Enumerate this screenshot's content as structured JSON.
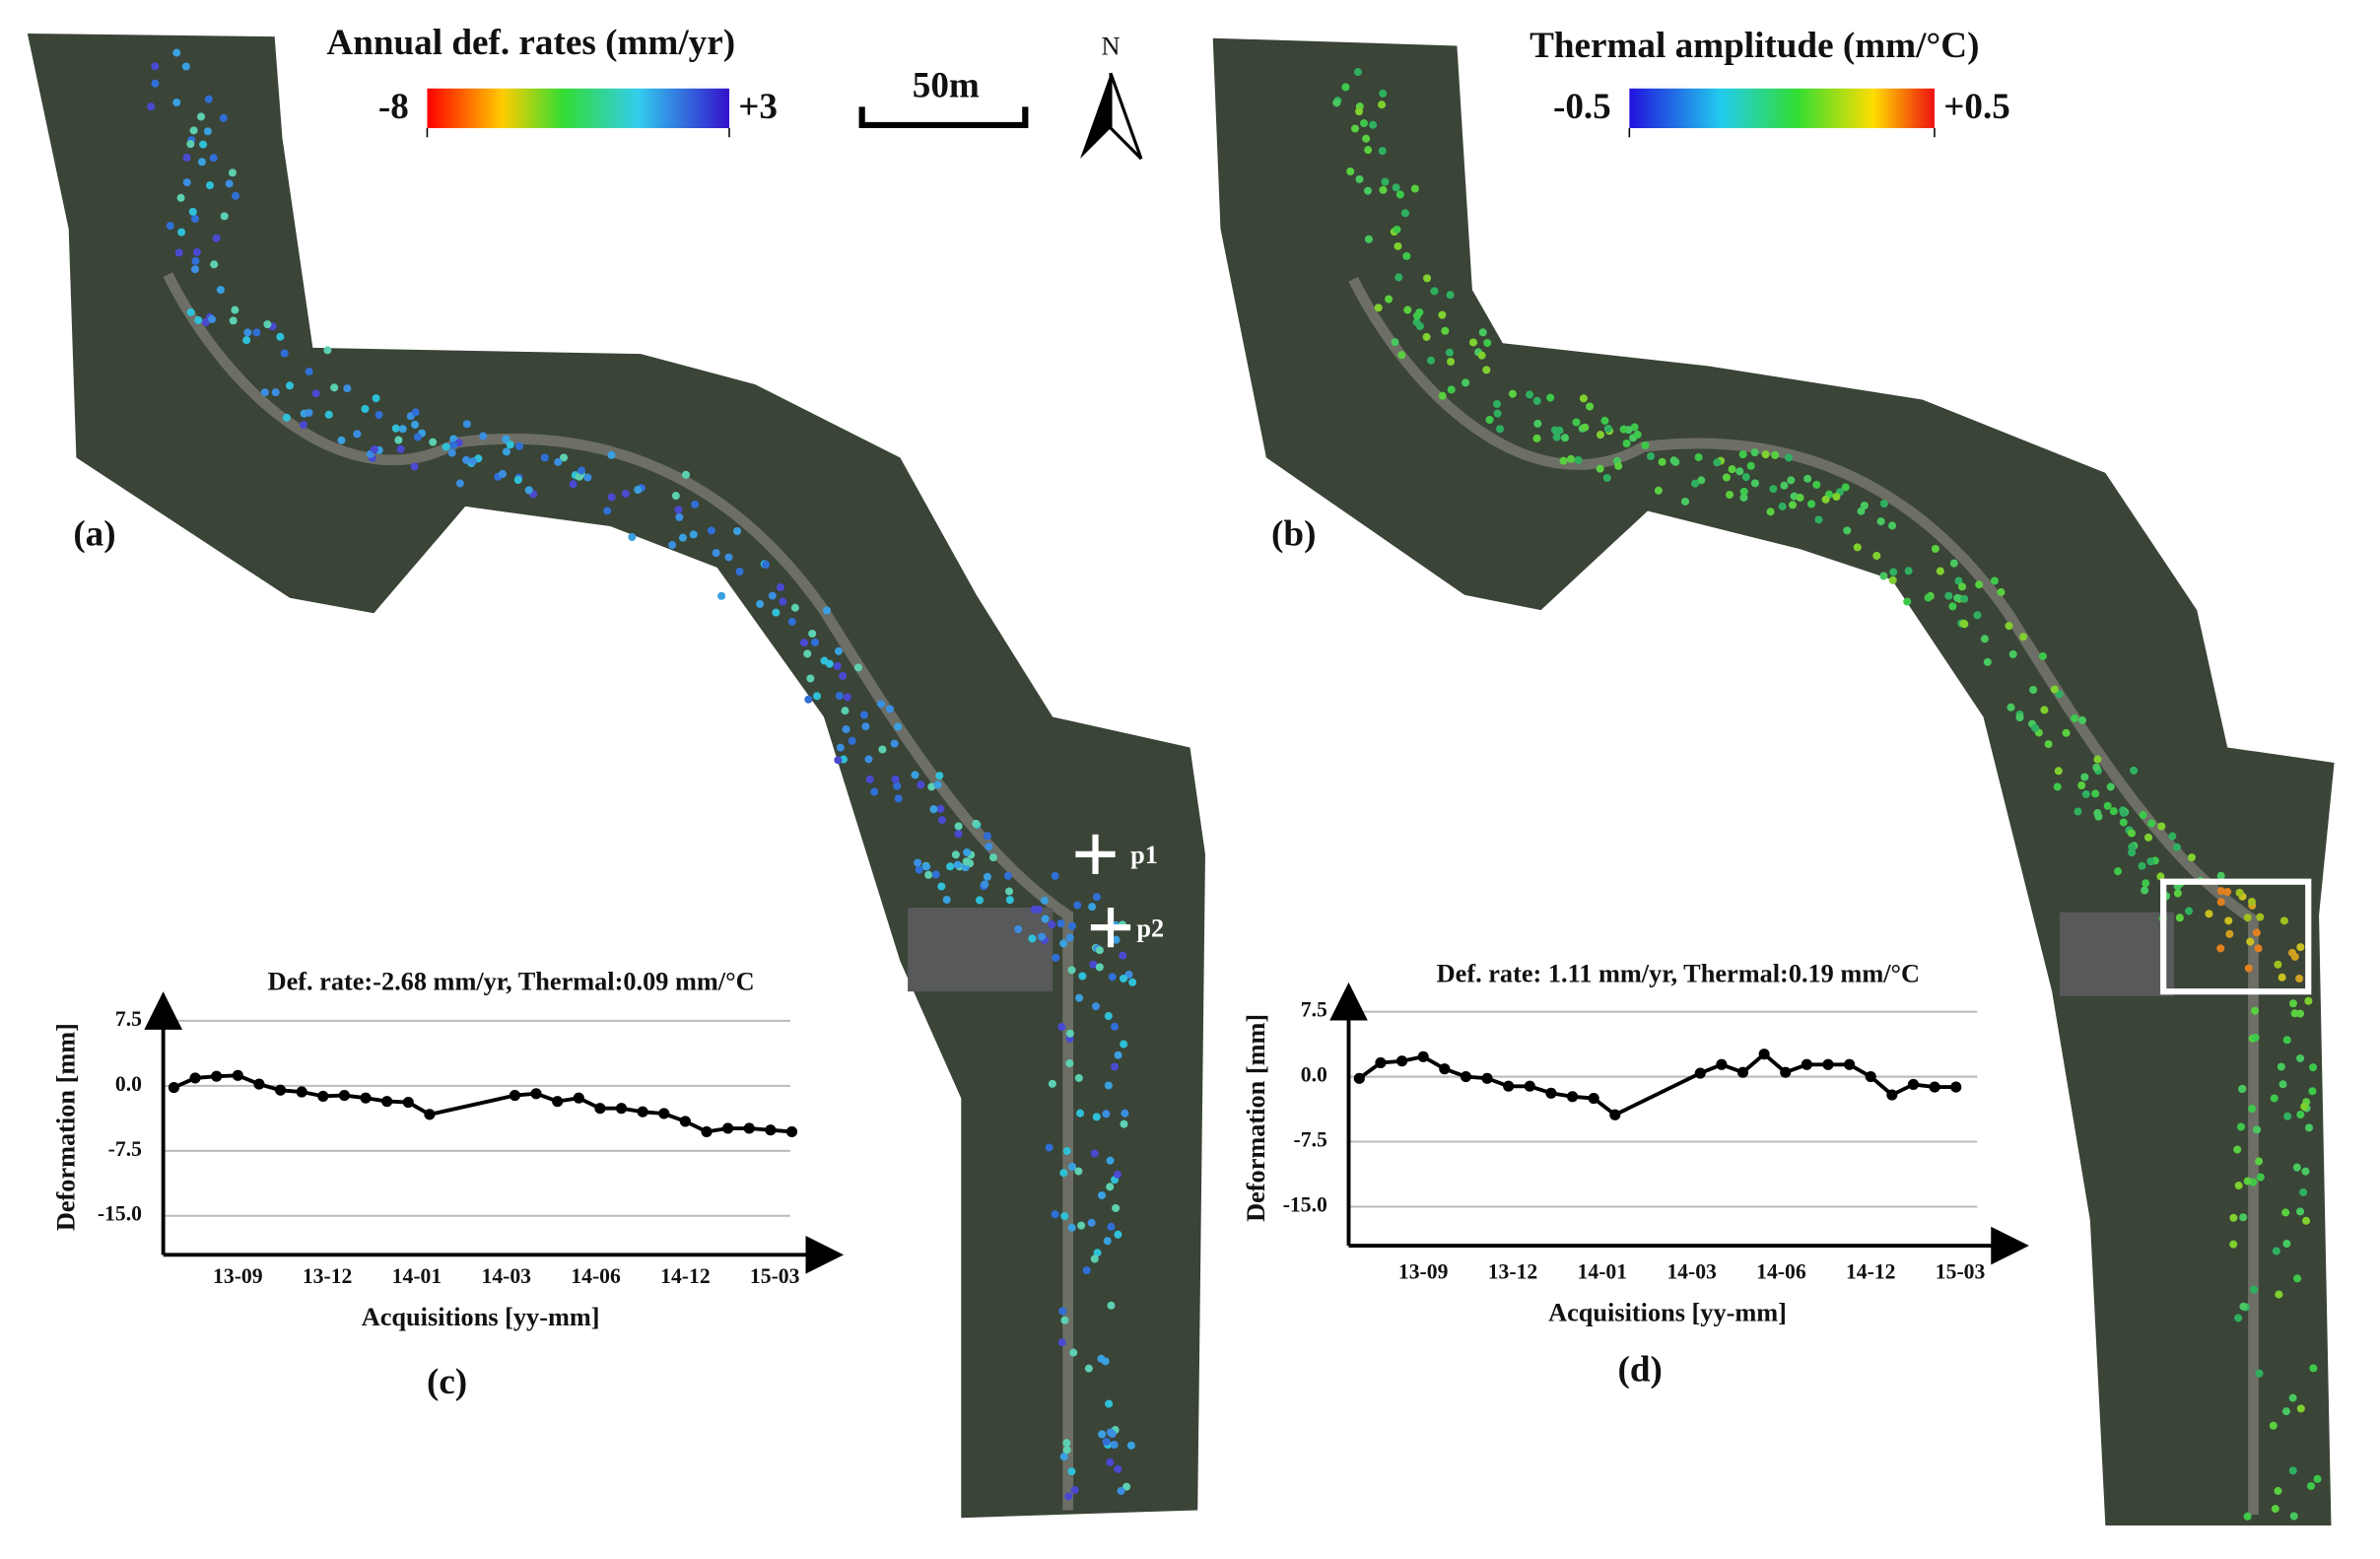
{
  "maps": [
    {
      "panel_label": "(a)",
      "colorbar": {
        "title": "Annual def. rates (mm/yr)",
        "min": -8,
        "max": {
          "value": 3,
          "label": "+3"
        }
      },
      "points": [
        {
          "label": "p1"
        },
        {
          "label": "p2"
        }
      ]
    },
    {
      "panel_label": "(b)",
      "colorbar": {
        "title": "Thermal amplitude (mm/°C)",
        "min": -0.5,
        "max": {
          "value": 0.5,
          "label": "+0.5"
        }
      }
    }
  ],
  "scale_bar": "50m",
  "north_arrow": "N",
  "chart_data": [
    {
      "type": "line",
      "title": "Def. rate:-2.68 mm/yr, Thermal:0.09 mm/°C",
      "panel_label": "(c)",
      "x_label": "Acquisitions [yy-mm]",
      "y_label": "Deformation [mm]",
      "x": [
        0,
        1,
        2,
        3,
        4,
        5,
        6,
        7,
        8,
        9,
        10,
        11,
        12,
        16,
        17,
        18,
        19,
        20,
        21,
        22,
        23,
        24,
        25,
        26,
        27,
        28,
        29
      ],
      "values": [
        -0.2,
        0.9,
        1.1,
        1.2,
        0.2,
        -0.5,
        -0.7,
        -1.2,
        -1.1,
        -1.4,
        -1.8,
        -1.9,
        -3.3,
        -1.1,
        -0.9,
        -1.8,
        -1.4,
        -2.6,
        -2.6,
        -3.0,
        -3.2,
        -4.1,
        -5.3,
        -4.9,
        -4.9,
        -5.1,
        -5.3
      ],
      "color": "#000000",
      "xlim": [
        -0.5,
        30
      ],
      "ylim": [
        -19.5,
        10
      ],
      "xticks": [
        {
          "value": 3,
          "label": "13-09"
        },
        {
          "value": 7.2,
          "label": "13-12"
        },
        {
          "value": 11.4,
          "label": "14-01"
        },
        {
          "value": 15.6,
          "label": "14-03"
        },
        {
          "value": 19.8,
          "label": "14-06"
        },
        {
          "value": 24,
          "label": "14-12"
        },
        {
          "value": 28.2,
          "label": "15-03"
        }
      ],
      "yticks": [
        7.5,
        {
          "value": 0,
          "label": "0.0"
        },
        -7.5,
        {
          "value": -15,
          "label": "-15.0"
        }
      ],
      "grid": true
    },
    {
      "type": "line",
      "title": "Def. rate: 1.11 mm/yr, Thermal:0.19 mm/°C",
      "panel_label": "(d)",
      "x_label": "Acquisitions [yy-mm]",
      "y_label": "Deformation [mm]",
      "x": [
        0,
        1,
        2,
        3,
        4,
        5,
        6,
        7,
        8,
        9,
        10,
        11,
        12,
        16,
        17,
        18,
        19,
        20,
        21,
        22,
        23,
        24,
        25,
        26,
        27,
        28
      ],
      "values": [
        -0.2,
        1.6,
        1.8,
        2.3,
        0.9,
        0,
        -0.2,
        -1.1,
        -1.1,
        -1.9,
        -2.3,
        -2.5,
        -4.4,
        0.4,
        1.4,
        0.5,
        2.6,
        0.5,
        1.4,
        1.4,
        1.4,
        0,
        -2.1,
        -0.9,
        -1.2,
        -1.2
      ],
      "color": "#000000",
      "xlim": [
        -0.5,
        30
      ],
      "ylim": [
        -19.5,
        10
      ],
      "xticks": [
        {
          "value": 3,
          "label": "13-09"
        },
        {
          "value": 7.2,
          "label": "13-12"
        },
        {
          "value": 11.4,
          "label": "14-01"
        },
        {
          "value": 15.6,
          "label": "14-03"
        },
        {
          "value": 19.8,
          "label": "14-06"
        },
        {
          "value": 24,
          "label": "14-12"
        },
        {
          "value": 28.2,
          "label": "15-03"
        }
      ],
      "yticks": [
        7.5,
        {
          "value": 0,
          "label": "0.0"
        },
        -7.5,
        {
          "value": -15,
          "label": "-15.0"
        }
      ],
      "grid": true
    }
  ]
}
